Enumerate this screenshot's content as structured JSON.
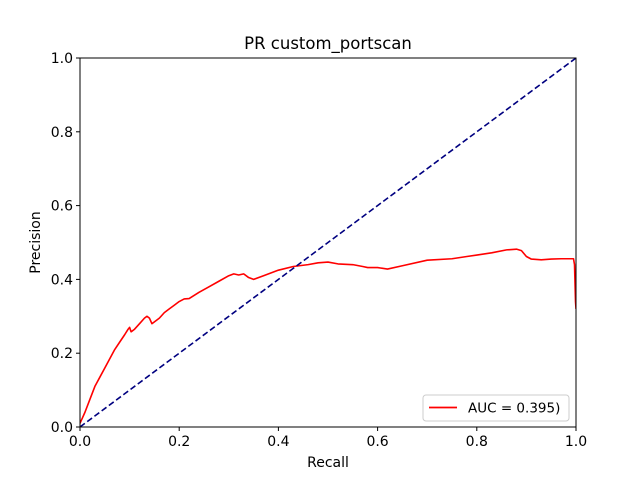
{
  "chart_data": {
    "type": "line",
    "title": "PR custom_portscan",
    "xlabel": "Recall",
    "ylabel": "Precision",
    "xlim": [
      0.0,
      1.0
    ],
    "ylim": [
      0.0,
      1.0
    ],
    "xticks": [
      "0.0",
      "0.2",
      "0.4",
      "0.6",
      "0.8",
      "1.0"
    ],
    "yticks": [
      "0.0",
      "0.2",
      "0.4",
      "0.6",
      "0.8",
      "1.0"
    ],
    "grid": false,
    "legend_position": "lower-right",
    "series": [
      {
        "name": "AUC = 0.395)",
        "color": "#ff0000",
        "style": "solid",
        "x": [
          0.0,
          0.005,
          0.01,
          0.02,
          0.03,
          0.04,
          0.05,
          0.06,
          0.07,
          0.08,
          0.09,
          0.097,
          0.1,
          0.103,
          0.11,
          0.12,
          0.13,
          0.135,
          0.14,
          0.145,
          0.15,
          0.16,
          0.17,
          0.18,
          0.19,
          0.2,
          0.21,
          0.22,
          0.24,
          0.26,
          0.28,
          0.3,
          0.31,
          0.32,
          0.33,
          0.34,
          0.35,
          0.37,
          0.4,
          0.43,
          0.46,
          0.48,
          0.5,
          0.52,
          0.55,
          0.57,
          0.58,
          0.6,
          0.62,
          0.65,
          0.7,
          0.75,
          0.78,
          0.8,
          0.83,
          0.86,
          0.88,
          0.89,
          0.9,
          0.91,
          0.93,
          0.95,
          0.97,
          0.99,
          0.995,
          0.997,
          0.999,
          1.0
        ],
        "y": [
          0.01,
          0.025,
          0.04,
          0.075,
          0.11,
          0.135,
          0.16,
          0.185,
          0.21,
          0.23,
          0.25,
          0.265,
          0.27,
          0.258,
          0.265,
          0.28,
          0.295,
          0.3,
          0.295,
          0.28,
          0.285,
          0.295,
          0.31,
          0.32,
          0.33,
          0.34,
          0.347,
          0.348,
          0.365,
          0.38,
          0.395,
          0.41,
          0.415,
          0.412,
          0.415,
          0.405,
          0.4,
          0.41,
          0.425,
          0.435,
          0.44,
          0.445,
          0.447,
          0.442,
          0.44,
          0.435,
          0.432,
          0.432,
          0.428,
          0.437,
          0.452,
          0.456,
          0.462,
          0.466,
          0.472,
          0.48,
          0.482,
          0.478,
          0.462,
          0.455,
          0.453,
          0.455,
          0.456,
          0.456,
          0.456,
          0.44,
          0.34,
          0.32
        ]
      },
      {
        "name": "",
        "color": "#000080",
        "style": "dashed",
        "x": [
          0.0,
          1.0
        ],
        "y": [
          0.0,
          1.0
        ]
      }
    ]
  }
}
